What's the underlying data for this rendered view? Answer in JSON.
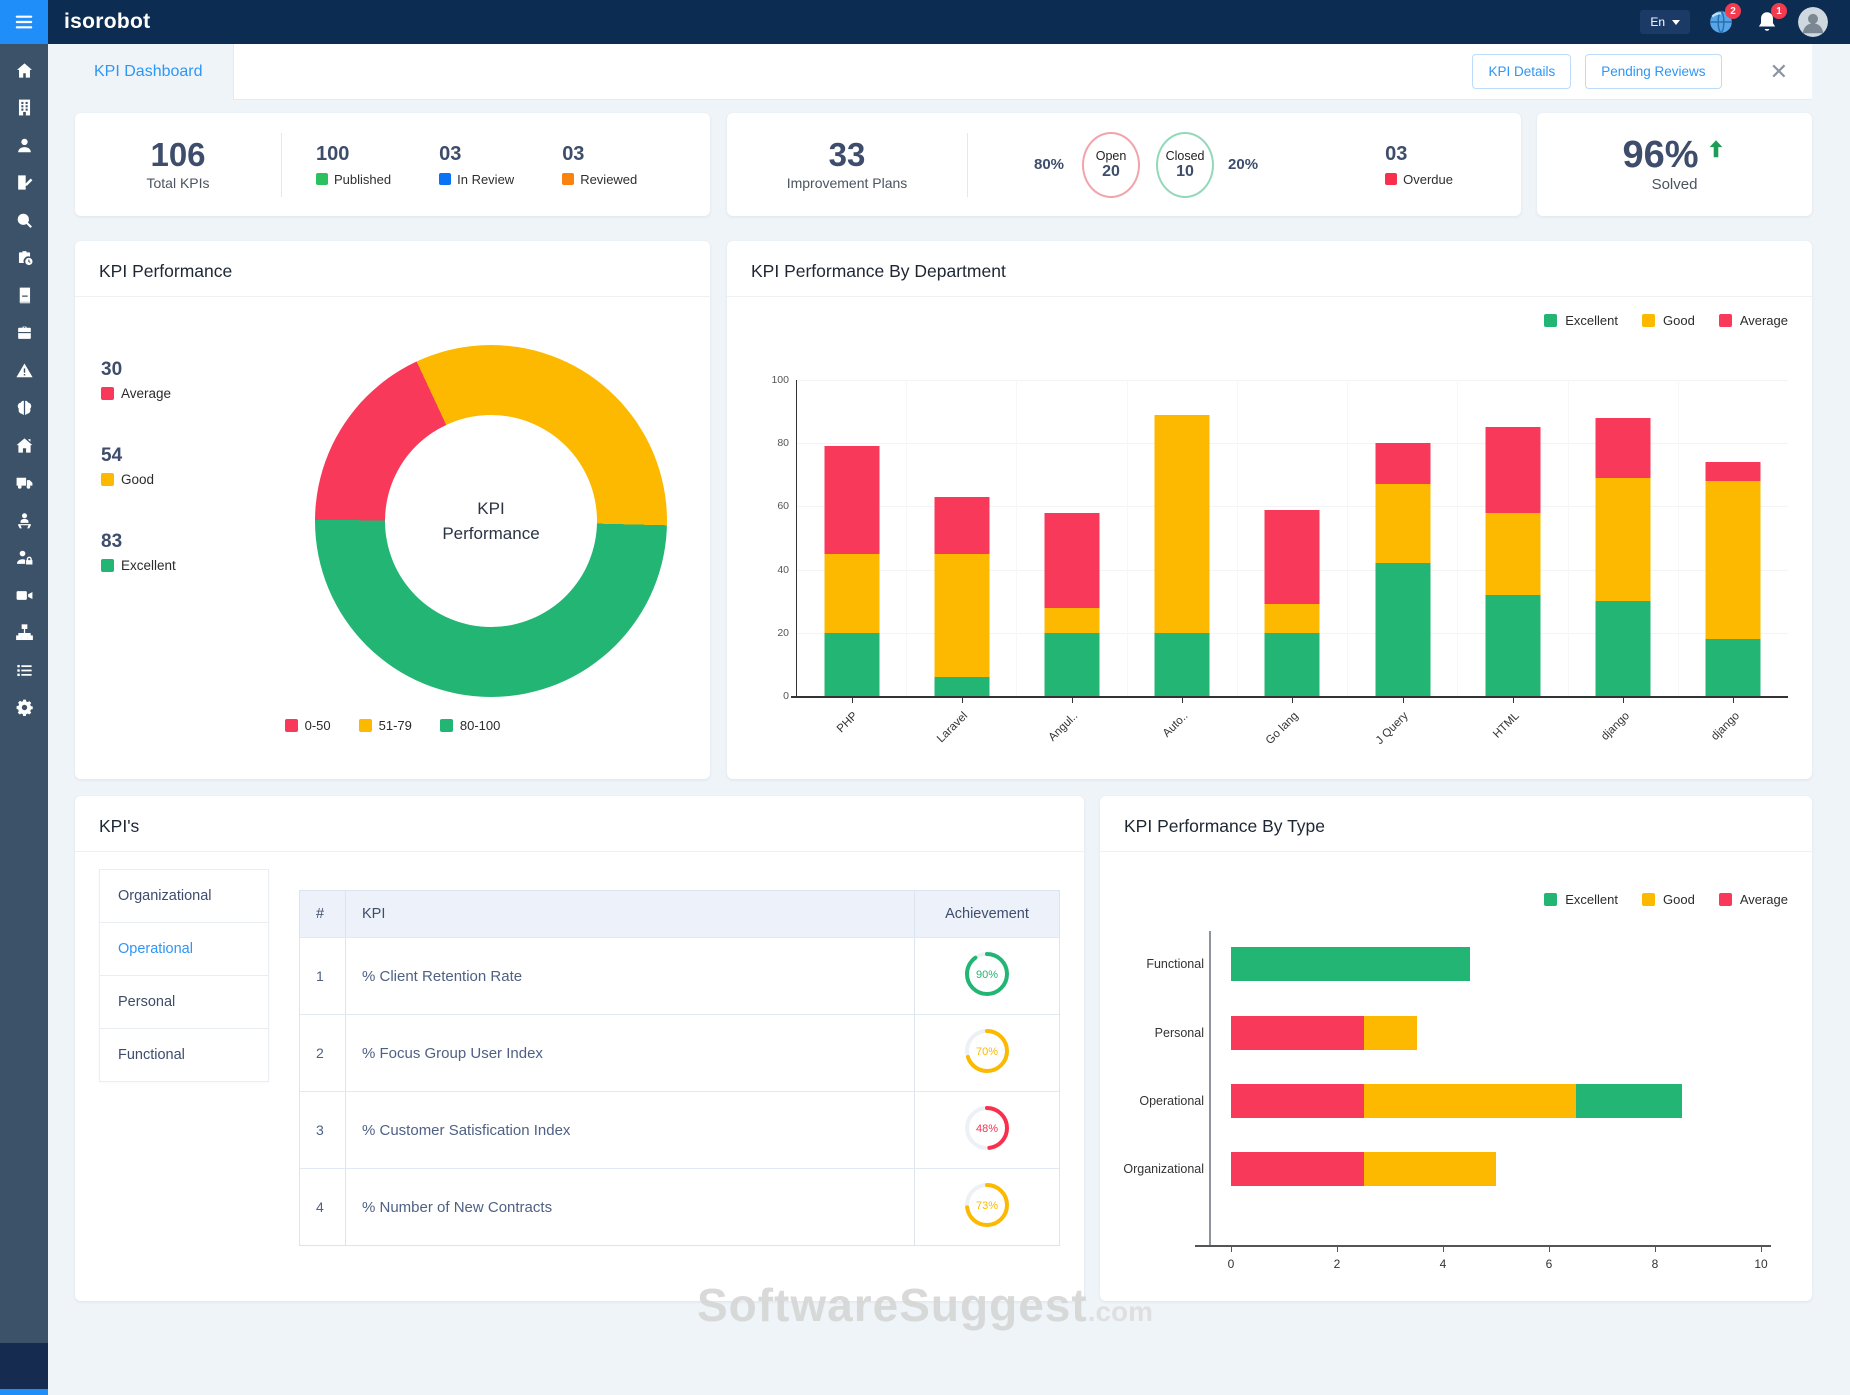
{
  "brand": "isorobot",
  "topbar": {
    "language": "En",
    "globe_badge": "2",
    "bell_badge": "1"
  },
  "tabbar": {
    "title": "KPI Dashboard",
    "kpi_details_label": "KPI Details",
    "pending_reviews_label": "Pending Reviews",
    "close_glyph": "✕"
  },
  "summary": {
    "total_kpis": {
      "value": "106",
      "label": "Total KPIs"
    },
    "items": [
      {
        "value": "100",
        "label": "Published",
        "color": "#2bc15f"
      },
      {
        "value": "03",
        "label": "In Review",
        "color": "#0b72f5"
      },
      {
        "value": "03",
        "label": "Reviewed",
        "color": "#fc8210"
      }
    ],
    "improvement_plans": {
      "value": "33",
      "label": "Improvement Plans"
    },
    "open": {
      "pct": "80%",
      "label": "Open",
      "value": "20"
    },
    "closed": {
      "pct": "20%",
      "label": "Closed",
      "value": "10"
    },
    "overdue": {
      "value": "03",
      "label": "Overdue",
      "color": "#f8304e"
    },
    "solved": {
      "value": "96%",
      "label": "Solved"
    }
  },
  "donut_card": {
    "title": "KPI Performance",
    "center_line1": "KPI",
    "center_line2": "Performance",
    "stats": [
      {
        "value": "30",
        "label": "Average",
        "color": "#f8395a"
      },
      {
        "value": "54",
        "label": "Good",
        "color": "#fcb900"
      },
      {
        "value": "83",
        "label": "Excellent",
        "color": "#22b573"
      }
    ],
    "range_legend": [
      {
        "label": "0-50",
        "color": "#f8395a"
      },
      {
        "label": "51-79",
        "color": "#fcb900"
      },
      {
        "label": "80-100",
        "color": "#22b573"
      }
    ]
  },
  "dept_card": {
    "title": "KPI Performance By Department",
    "legend": [
      {
        "label": "Excellent",
        "color": "#22b573"
      },
      {
        "label": "Good",
        "color": "#fcb900"
      },
      {
        "label": "Average",
        "color": "#f8395a"
      }
    ]
  },
  "kpis_card": {
    "title": "KPI's",
    "tabs": [
      {
        "label": "Organizational",
        "active": false
      },
      {
        "label": "Operational",
        "active": true
      },
      {
        "label": "Personal",
        "active": false
      },
      {
        "label": "Functional",
        "active": false
      }
    ],
    "table": {
      "headers": [
        "#",
        "KPI",
        "Achievement"
      ],
      "rows": [
        {
          "num": "1",
          "kpi": "% Client Retention Rate",
          "achievement": 90,
          "color": "#22b573"
        },
        {
          "num": "2",
          "kpi": "% Focus Group User Index",
          "achievement": 70,
          "color": "#fcb900"
        },
        {
          "num": "3",
          "kpi": "% Customer Satisfication Index",
          "achievement": 48,
          "color": "#f8304e"
        },
        {
          "num": "4",
          "kpi": "% Number of New Contracts",
          "achievement": 73,
          "color": "#fcb900"
        }
      ]
    }
  },
  "type_card": {
    "title": "KPI Performance By Type",
    "legend": [
      {
        "label": "Excellent",
        "color": "#22b573"
      },
      {
        "label": "Good",
        "color": "#fcb900"
      },
      {
        "label": "Average",
        "color": "#f8395a"
      }
    ]
  },
  "watermark": {
    "main": "SoftwareSuggest",
    "suffix": ".com"
  },
  "sidebar_icons": [
    "home",
    "building",
    "user",
    "document-edit",
    "search",
    "briefcase-clock",
    "book",
    "briefcase",
    "warning",
    "brain",
    "home-roof",
    "truck",
    "user-podium",
    "user-lock",
    "video-camera",
    "sitemap",
    "list",
    "gear"
  ],
  "chart_data": [
    {
      "type": "pie",
      "donut": true,
      "title": "KPI Performance",
      "labels": [
        "Average",
        "Good",
        "Excellent"
      ],
      "values": [
        30,
        54,
        83
      ],
      "colors": [
        "#f8395a",
        "#fcb900",
        "#22b573"
      ],
      "center_label": "KPI Performance",
      "start_angle_deg": -25
    },
    {
      "type": "bar",
      "stacked": true,
      "title": "KPI Performance By Department",
      "categories": [
        "PHP",
        "Laravel",
        "Angul..",
        "Auto..",
        "Go lang",
        "J Query",
        "HTML",
        "django",
        "django"
      ],
      "series": [
        {
          "name": "Excellent",
          "color": "#22b573",
          "values": [
            20,
            6,
            20,
            20,
            20,
            42,
            32,
            30,
            18
          ]
        },
        {
          "name": "Good",
          "color": "#fcb900",
          "values": [
            25,
            39,
            8,
            69,
            9,
            25,
            26,
            39,
            50
          ]
        },
        {
          "name": "Average",
          "color": "#f8395a",
          "values": [
            34,
            18,
            30,
            0,
            30,
            13,
            27,
            19,
            6
          ]
        }
      ],
      "ylabel": "",
      "ylim": [
        0,
        100
      ],
      "yticks": [
        0,
        20,
        40,
        60,
        80,
        100
      ],
      "grid": true,
      "legend_position": "top-right"
    },
    {
      "type": "bar",
      "orientation": "horizontal",
      "stacked": true,
      "title": "KPI Performance By Type",
      "categories": [
        "Functional",
        "Personal",
        "Operational",
        "Organizational"
      ],
      "series": [
        {
          "name": "Average",
          "color": "#f8395a",
          "values": [
            0,
            2.5,
            2.5,
            2.5
          ]
        },
        {
          "name": "Good",
          "color": "#fcb900",
          "values": [
            0,
            1,
            4,
            2.5
          ]
        },
        {
          "name": "Excellent",
          "color": "#22b573",
          "values": [
            4.5,
            0,
            2,
            0
          ]
        }
      ],
      "xlim": [
        0,
        10
      ],
      "xticks": [
        0,
        2,
        4,
        6,
        8,
        10
      ],
      "grid": false,
      "legend_position": "top-right"
    }
  ]
}
